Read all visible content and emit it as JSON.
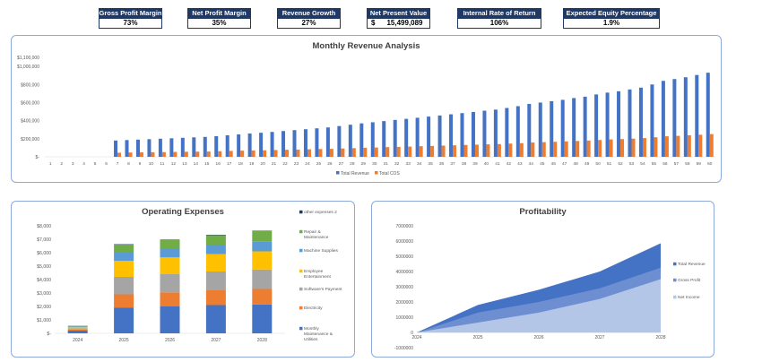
{
  "kpis": [
    {
      "label": "Gross Profit Margin",
      "value": "73%"
    },
    {
      "label": "Net Profit Margin",
      "value": "35%"
    },
    {
      "label": "Revenue Growth",
      "value": "27%"
    },
    {
      "label": "Net Present Value",
      "currency": "$",
      "value": "15,499,089"
    },
    {
      "label": "Internal Rate of Return",
      "value": "106%"
    },
    {
      "label": "Expected Equity Percentage",
      "value": "1.9%"
    }
  ],
  "colors": {
    "navy": "#1f3864",
    "blue": "#4472c4",
    "orange": "#ed7d31",
    "gray": "#a5a5a5",
    "yellow": "#ffc000",
    "lightblue": "#5b9bd5",
    "green": "#70ad47"
  },
  "chart_data": [
    {
      "type": "bar",
      "title": "Monthly Revenue Analysis",
      "categories": [
        "1",
        "2",
        "3",
        "4",
        "5",
        "6",
        "7",
        "8",
        "9",
        "10",
        "11",
        "12",
        "13",
        "14",
        "15",
        "16",
        "17",
        "18",
        "19",
        "20",
        "21",
        "22",
        "23",
        "24",
        "25",
        "26",
        "27",
        "28",
        "29",
        "30",
        "31",
        "32",
        "33",
        "34",
        "35",
        "36",
        "37",
        "38",
        "39",
        "40",
        "41",
        "42",
        "43",
        "44",
        "45",
        "46",
        "47",
        "48",
        "49",
        "50",
        "51",
        "52",
        "53",
        "54",
        "55",
        "56",
        "57",
        "58",
        "59",
        "60"
      ],
      "yticks": [
        "$1,100,000",
        "$1,000,000",
        "$800,000",
        "$600,000",
        "$400,000",
        "$200,000",
        "$-"
      ],
      "ylim": [
        0,
        1100000
      ],
      "series": [
        {
          "name": "Total Revenue",
          "values": [
            0,
            0,
            0,
            0,
            0,
            0,
            180000,
            185000,
            190000,
            195000,
            200000,
            205000,
            210000,
            215000,
            220000,
            228000,
            238000,
            248000,
            258000,
            266000,
            275000,
            285000,
            295000,
            305000,
            315000,
            325000,
            340000,
            355000,
            370000,
            382000,
            395000,
            408000,
            420000,
            432000,
            445000,
            457000,
            470000,
            483000,
            496000,
            510000,
            522000,
            540000,
            560000,
            585000,
            600000,
            615000,
            630000,
            650000,
            665000,
            690000,
            710000,
            725000,
            745000,
            765000,
            800000,
            840000,
            860000,
            880000,
            905000,
            930000
          ]
        },
        {
          "name": "Total COS",
          "values": [
            0,
            0,
            0,
            0,
            0,
            0,
            45000,
            47000,
            49000,
            50000,
            52000,
            54000,
            56000,
            57000,
            58000,
            62000,
            65000,
            68000,
            70000,
            72000,
            75000,
            78000,
            80000,
            83000,
            86000,
            88000,
            92000,
            96000,
            100000,
            103000,
            107000,
            110000,
            113000,
            117000,
            120000,
            124000,
            127000,
            131000,
            134000,
            138000,
            141000,
            146000,
            151000,
            158000,
            162000,
            166000,
            170000,
            175000,
            180000,
            186000,
            192000,
            196000,
            201000,
            207000,
            216000,
            227000,
            232000,
            238000,
            244000,
            251000
          ]
        }
      ]
    },
    {
      "type": "stacked-bar",
      "title": "Operating Expenses",
      "categories": [
        "2024",
        "2025",
        "2026",
        "2027",
        "2028"
      ],
      "yticks": [
        "$8,000",
        "$7,000",
        "$6,000",
        "$5,000",
        "$4,000",
        "$3,000",
        "$2,000",
        "$1,000",
        "$-"
      ],
      "ylim": [
        0,
        8000
      ],
      "series": [
        {
          "name": "Monthly Maintenance & Utilities",
          "values": [
            200,
            1900,
            2000,
            2100,
            2150
          ]
        },
        {
          "name": "Electricity",
          "values": [
            80,
            1000,
            1050,
            1100,
            1150
          ]
        },
        {
          "name": "Software's Payment",
          "values": [
            100,
            1300,
            1350,
            1400,
            1450
          ]
        },
        {
          "name": "Employee Entertainment",
          "values": [
            80,
            1200,
            1250,
            1300,
            1350
          ]
        },
        {
          "name": "Machine Supplies",
          "values": [
            50,
            600,
            650,
            700,
            750
          ]
        },
        {
          "name": "Repair & Maintenance",
          "values": [
            50,
            600,
            650,
            700,
            750
          ]
        },
        {
          "name": "other expenses 2",
          "values": [
            5,
            30,
            30,
            30,
            30
          ]
        }
      ]
    },
    {
      "type": "area",
      "title": "Profitability",
      "categories": [
        "2024",
        "2025",
        "2026",
        "2027",
        "2028"
      ],
      "yticks": [
        "7000000",
        "6000000",
        "5000000",
        "4000000",
        "3000000",
        "2000000",
        "1000000",
        "0",
        "-1000000"
      ],
      "ylim": [
        -1000000,
        7000000
      ],
      "series": [
        {
          "name": "Total Revenue",
          "values": [
            0,
            1800000,
            2800000,
            4000000,
            5850000
          ]
        },
        {
          "name": "Gross Profit",
          "values": [
            0,
            1300000,
            2000000,
            2900000,
            4250000
          ]
        },
        {
          "name": "Net Income",
          "values": [
            0,
            650000,
            1300000,
            2200000,
            3500000
          ]
        }
      ]
    }
  ]
}
